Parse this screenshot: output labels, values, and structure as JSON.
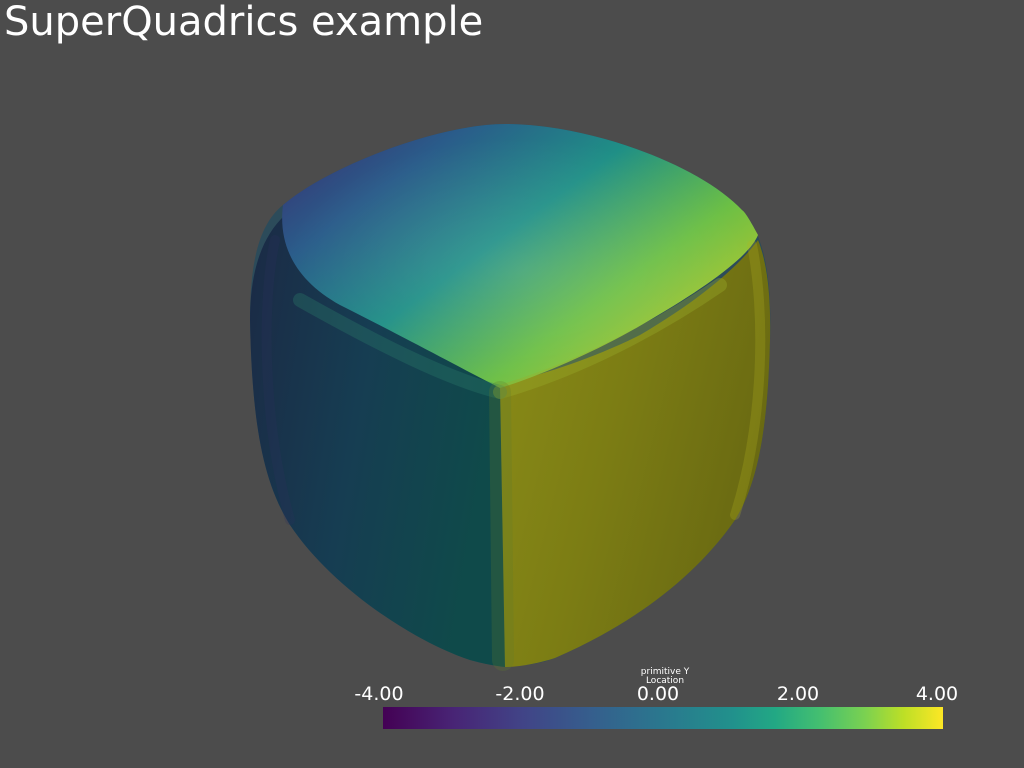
{
  "title": "SuperQuadrics example",
  "scalar_bar": {
    "title_line1": "primitive Y",
    "title_line2": "Location",
    "ticks": [
      {
        "label": "-4.00",
        "value": -4.0
      },
      {
        "label": "-2.00",
        "value": -2.0
      },
      {
        "label": "0.00",
        "value": 0.0
      },
      {
        "label": "2.00",
        "value": 2.0
      },
      {
        "label": "4.00",
        "value": 4.0
      }
    ],
    "range": [
      -4.0,
      4.0
    ],
    "colormap": "viridis"
  },
  "colors": {
    "background": "#4c4c4c",
    "text": "#ffffff"
  }
}
